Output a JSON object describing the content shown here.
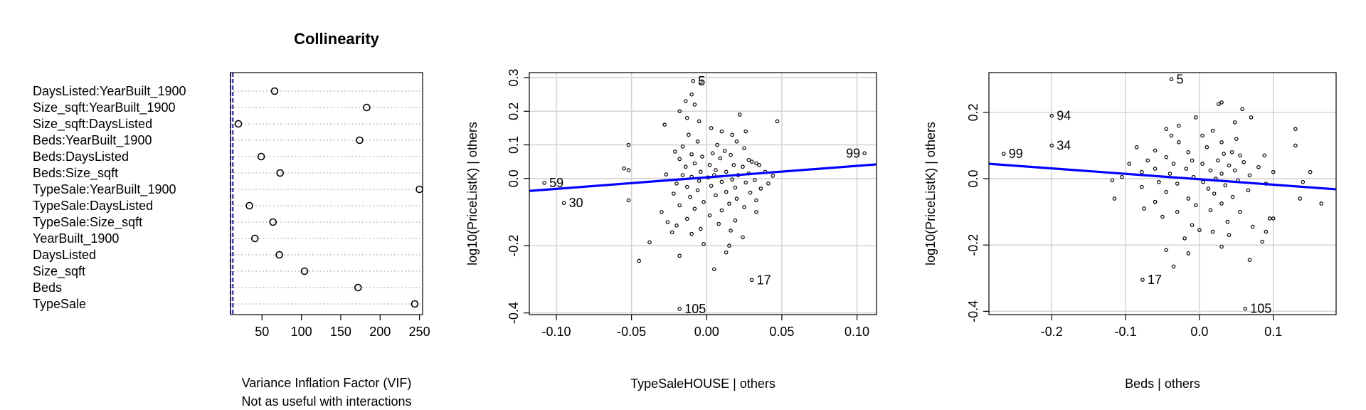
{
  "chart_data": [
    {
      "type": "scatter",
      "title": "Collinearity",
      "xlabel": "Variance Inflation Factor (VIF)",
      "xlabel2": "Not as useful with interactions",
      "xticks": [
        50,
        100,
        150,
        200,
        250
      ],
      "xlim": [
        10,
        254
      ],
      "reference_lines": [
        10,
        13
      ],
      "categories": [
        "DaysListed:YearBuilt_1900",
        "Size_sqft:YearBuilt_1900",
        "Size_sqft:DaysListed",
        "Beds:YearBuilt_1900",
        "Beds:DaysListed",
        "Beds:Size_sqft",
        "TypeSale:YearBuilt_1900",
        "TypeSale:DaysListed",
        "TypeSale:Size_sqft",
        "YearBuilt_1900",
        "DaysListed",
        "Size_sqft",
        "Beds",
        "TypeSale"
      ],
      "values": [
        66,
        183,
        20,
        174,
        49,
        73,
        250,
        34,
        64,
        41,
        72,
        104,
        172,
        244
      ],
      "grid": true
    },
    {
      "type": "scatter",
      "xlabel": "TypeSaleHOUSE | others",
      "ylabel": "log10(PriceListK)  | others",
      "xlim": [
        -0.118,
        0.113
      ],
      "ylim": [
        -0.405,
        0.315
      ],
      "xticks": [
        -0.1,
        -0.05,
        0.0,
        0.05,
        0.1
      ],
      "xtick_labels": [
        "-0.10",
        "-0.05",
        "0.00",
        "0.05",
        "0.10"
      ],
      "yticks": [
        -0.4,
        -0.2,
        0.0,
        0.1,
        0.2,
        0.3
      ],
      "ytick_labels": [
        "-0.4",
        "-0.2",
        "0.0",
        "0.1",
        "0.2",
        "0.3"
      ],
      "grid": true,
      "fit_line": {
        "x": [
          -0.118,
          0.113
        ],
        "y": [
          -0.037,
          0.042
        ],
        "color": "#0000ff"
      },
      "labeled_points": [
        {
          "label": "5",
          "x": -0.009,
          "y": 0.29
        },
        {
          "label": "99",
          "x": 0.105,
          "y": 0.075
        },
        {
          "label": "59",
          "x": -0.108,
          "y": -0.013
        },
        {
          "label": "30",
          "x": -0.095,
          "y": -0.073
        },
        {
          "label": "17",
          "x": 0.03,
          "y": -0.302
        },
        {
          "label": "105",
          "x": -0.018,
          "y": -0.388
        }
      ],
      "points": [
        [
          -0.108,
          -0.013
        ],
        [
          -0.095,
          -0.073
        ],
        [
          -0.009,
          0.29
        ],
        [
          0.105,
          0.075
        ],
        [
          0.03,
          -0.302
        ],
        [
          -0.018,
          -0.388
        ],
        [
          -0.004,
          0.287
        ],
        [
          -0.01,
          0.25
        ],
        [
          -0.014,
          0.23
        ],
        [
          -0.008,
          0.22
        ],
        [
          -0.018,
          0.2
        ],
        [
          -0.013,
          0.18
        ],
        [
          -0.028,
          0.16
        ],
        [
          -0.005,
          0.17
        ],
        [
          0.022,
          0.19
        ],
        [
          0.047,
          0.17
        ],
        [
          0.003,
          0.15
        ],
        [
          0.01,
          0.14
        ],
        [
          0.017,
          0.13
        ],
        [
          -0.012,
          0.13
        ],
        [
          0.026,
          0.14
        ],
        [
          0.02,
          0.11
        ],
        [
          -0.006,
          0.11
        ],
        [
          0.007,
          0.1
        ],
        [
          -0.016,
          0.095
        ],
        [
          0.025,
          0.09
        ],
        [
          0.012,
          0.082
        ],
        [
          -0.021,
          0.08
        ],
        [
          0.004,
          0.075
        ],
        [
          -0.01,
          0.072
        ],
        [
          0.016,
          0.07
        ],
        [
          -0.003,
          0.065
        ],
        [
          0.009,
          0.06
        ],
        [
          -0.018,
          0.058
        ],
        [
          0.028,
          0.055
        ],
        [
          0.03,
          0.05
        ],
        [
          0.033,
          0.045
        ],
        [
          0.035,
          0.04
        ],
        [
          -0.008,
          0.045
        ],
        [
          0.002,
          0.04
        ],
        [
          0.018,
          0.04
        ],
        [
          -0.014,
          0.035
        ],
        [
          0.024,
          0.035
        ],
        [
          -0.055,
          0.03
        ],
        [
          -0.052,
          0.025
        ],
        [
          0.006,
          0.025
        ],
        [
          -0.004,
          0.02
        ],
        [
          0.013,
          0.02
        ],
        [
          0.039,
          0.02
        ],
        [
          0.028,
          0.015
        ],
        [
          -0.027,
          0.012
        ],
        [
          -0.016,
          0.01
        ],
        [
          0.005,
          0.01
        ],
        [
          0.021,
          0.01
        ],
        [
          0.044,
          0.008
        ],
        [
          -0.01,
          0.005
        ],
        [
          0.001,
          0.003
        ],
        [
          0.017,
          -0.003
        ],
        [
          0.032,
          -0.005
        ],
        [
          -0.005,
          -0.007
        ],
        [
          0.01,
          -0.01
        ],
        [
          0.026,
          -0.012
        ],
        [
          -0.02,
          -0.015
        ],
        [
          0.041,
          -0.015
        ],
        [
          0.003,
          -0.022
        ],
        [
          -0.013,
          -0.025
        ],
        [
          0.019,
          -0.027
        ],
        [
          0.036,
          -0.03
        ],
        [
          -0.006,
          -0.035
        ],
        [
          0.013,
          -0.04
        ],
        [
          0.029,
          -0.042
        ],
        [
          -0.022,
          -0.045
        ],
        [
          0.006,
          -0.05
        ],
        [
          -0.011,
          -0.055
        ],
        [
          -0.052,
          -0.065
        ],
        [
          0.02,
          -0.06
        ],
        [
          0.033,
          -0.065
        ],
        [
          -0.002,
          -0.07
        ],
        [
          0.015,
          -0.075
        ],
        [
          -0.018,
          -0.08
        ],
        [
          0.025,
          -0.085
        ],
        [
          -0.008,
          -0.09
        ],
        [
          0.01,
          -0.095
        ],
        [
          -0.03,
          -0.1
        ],
        [
          0.033,
          -0.1
        ],
        [
          0.002,
          -0.11
        ],
        [
          -0.013,
          -0.12
        ],
        [
          0.019,
          -0.125
        ],
        [
          -0.026,
          -0.13
        ],
        [
          0.008,
          -0.135
        ],
        [
          -0.02,
          -0.14
        ],
        [
          -0.004,
          -0.15
        ],
        [
          0.016,
          -0.155
        ],
        [
          -0.023,
          -0.16
        ],
        [
          -0.01,
          -0.165
        ],
        [
          0.024,
          -0.175
        ],
        [
          -0.038,
          -0.19
        ],
        [
          -0.002,
          -0.195
        ],
        [
          0.015,
          -0.2
        ],
        [
          -0.018,
          -0.23
        ],
        [
          0.013,
          -0.22
        ],
        [
          -0.045,
          -0.245
        ],
        [
          0.005,
          -0.27
        ],
        [
          -0.052,
          0.1
        ]
      ]
    },
    {
      "type": "scatter",
      "xlabel": "Beds | others",
      "ylabel": "log10(PriceListK)  | others",
      "xlim": [
        -0.285,
        0.185
      ],
      "ylim": [
        -0.41,
        0.32
      ],
      "xticks": [
        -0.2,
        -0.1,
        0.0,
        0.1
      ],
      "xtick_labels": [
        "-0.2",
        "-0.1",
        "0.0",
        "0.1"
      ],
      "yticks": [
        -0.4,
        -0.2,
        0.0,
        0.2
      ],
      "ytick_labels": [
        "-0.4",
        "-0.2",
        "0.0",
        "0.2"
      ],
      "grid": true,
      "fit_line": {
        "x": [
          -0.285,
          0.185
        ],
        "y": [
          0.045,
          -0.032
        ],
        "color": "#0000ff"
      },
      "labeled_points": [
        {
          "label": "5",
          "x": -0.038,
          "y": 0.3
        },
        {
          "label": "94",
          "x": -0.2,
          "y": 0.19
        },
        {
          "label": "34",
          "x": -0.2,
          "y": 0.1
        },
        {
          "label": "99",
          "x": -0.265,
          "y": 0.075
        },
        {
          "label": "17",
          "x": -0.077,
          "y": -0.305
        },
        {
          "label": "105",
          "x": 0.062,
          "y": -0.392
        }
      ],
      "points": [
        [
          -0.038,
          0.3
        ],
        [
          -0.2,
          0.19
        ],
        [
          -0.2,
          0.1
        ],
        [
          -0.265,
          0.075
        ],
        [
          -0.077,
          -0.305
        ],
        [
          0.062,
          -0.392
        ],
        [
          0.03,
          0.23
        ],
        [
          0.026,
          0.225
        ],
        [
          0.058,
          0.21
        ],
        [
          0.07,
          0.185
        ],
        [
          -0.005,
          0.185
        ],
        [
          0.048,
          0.17
        ],
        [
          -0.028,
          0.16
        ],
        [
          0.13,
          0.15
        ],
        [
          -0.045,
          0.15
        ],
        [
          0.018,
          0.145
        ],
        [
          0.004,
          0.13
        ],
        [
          -0.038,
          0.13
        ],
        [
          0.05,
          0.12
        ],
        [
          -0.028,
          0.11
        ],
        [
          0.03,
          0.11
        ],
        [
          0.13,
          0.1
        ],
        [
          -0.085,
          0.095
        ],
        [
          0.01,
          0.095
        ],
        [
          -0.06,
          0.085
        ],
        [
          0.044,
          0.08
        ],
        [
          -0.015,
          0.08
        ],
        [
          0.033,
          0.075
        ],
        [
          0.055,
          0.07
        ],
        [
          -0.045,
          0.065
        ],
        [
          0.088,
          0.07
        ],
        [
          -0.07,
          0.055
        ],
        [
          -0.01,
          0.055
        ],
        [
          0.025,
          0.055
        ],
        [
          0.06,
          0.05
        ],
        [
          -0.095,
          0.045
        ],
        [
          -0.035,
          0.045
        ],
        [
          0.004,
          0.045
        ],
        [
          0.04,
          0.04
        ],
        [
          0.08,
          0.035
        ],
        [
          -0.06,
          0.03
        ],
        [
          -0.018,
          0.03
        ],
        [
          0.015,
          0.025
        ],
        [
          0.048,
          0.025
        ],
        [
          0.1,
          0.02
        ],
        [
          0.15,
          0.02
        ],
        [
          -0.078,
          0.02
        ],
        [
          -0.04,
          0.015
        ],
        [
          0.03,
          0.015
        ],
        [
          0.068,
          0.01
        ],
        [
          -0.105,
          0.005
        ],
        [
          -0.008,
          0.005
        ],
        [
          0.022,
          0.0
        ],
        [
          0.052,
          -0.005
        ],
        [
          -0.118,
          -0.005
        ],
        [
          -0.055,
          -0.01
        ],
        [
          0.005,
          -0.01
        ],
        [
          0.09,
          -0.015
        ],
        [
          0.14,
          -0.01
        ],
        [
          -0.03,
          -0.015
        ],
        [
          0.035,
          -0.02
        ],
        [
          -0.078,
          -0.025
        ],
        [
          0.012,
          -0.03
        ],
        [
          0.066,
          -0.035
        ],
        [
          -0.045,
          -0.04
        ],
        [
          0.02,
          -0.045
        ],
        [
          -0.115,
          -0.06
        ],
        [
          0.045,
          -0.055
        ],
        [
          0.136,
          -0.06
        ],
        [
          -0.015,
          -0.06
        ],
        [
          0.165,
          -0.075
        ],
        [
          -0.06,
          -0.07
        ],
        [
          0.03,
          -0.075
        ],
        [
          -0.005,
          -0.08
        ],
        [
          -0.075,
          -0.09
        ],
        [
          0.015,
          -0.095
        ],
        [
          0.055,
          -0.1
        ],
        [
          -0.03,
          -0.1
        ],
        [
          0.1,
          -0.12
        ],
        [
          -0.05,
          -0.115
        ],
        [
          0.038,
          -0.13
        ],
        [
          -0.01,
          -0.14
        ],
        [
          0.072,
          -0.145
        ],
        [
          0.0,
          -0.155
        ],
        [
          0.018,
          -0.16
        ],
        [
          0.09,
          -0.16
        ],
        [
          0.04,
          -0.17
        ],
        [
          -0.02,
          -0.18
        ],
        [
          0.085,
          -0.19
        ],
        [
          -0.045,
          -0.215
        ],
        [
          0.03,
          -0.205
        ],
        [
          -0.015,
          -0.225
        ],
        [
          0.068,
          -0.245
        ],
        [
          -0.035,
          -0.265
        ],
        [
          -0.06,
          -0.07
        ],
        [
          0.095,
          -0.12
        ]
      ]
    }
  ]
}
